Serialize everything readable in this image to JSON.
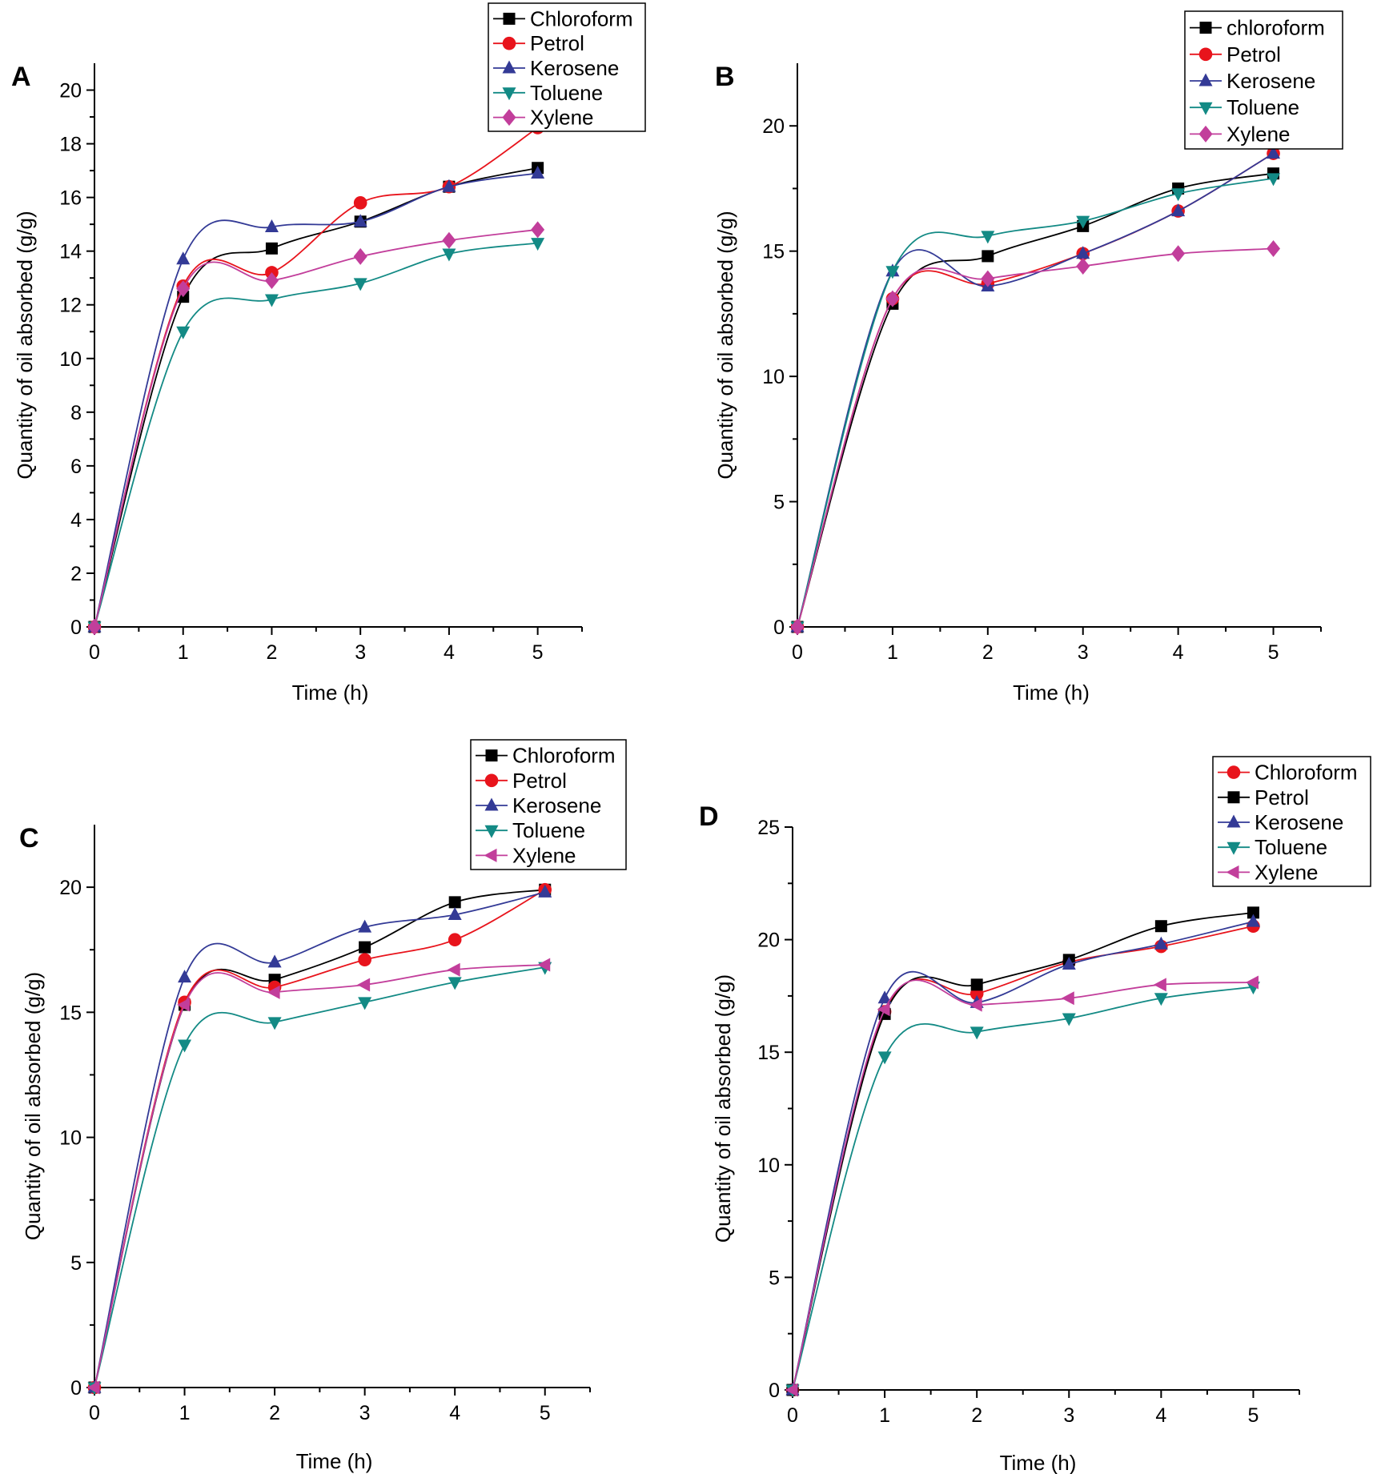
{
  "colors": {
    "black": "#000000",
    "red": "#e8141c",
    "blue": "#333a96",
    "teal": "#138a85",
    "magenta": "#c23e9b"
  },
  "chart_data": [
    {
      "panel": "A",
      "type": "line",
      "xlabel": "Time (h)",
      "ylabel": "Quantity of oil absorbed (g/g)",
      "x": [
        0,
        1,
        2,
        3,
        4,
        5
      ],
      "xlim": [
        0,
        5.5
      ],
      "ylim": [
        0,
        21
      ],
      "xticks": [
        "0",
        "1",
        "2",
        "3",
        "4",
        "5"
      ],
      "yticks": [
        "0",
        "2",
        "4",
        "6",
        "8",
        "10",
        "12",
        "14",
        "16",
        "18",
        "20"
      ],
      "ytick_values": [
        0,
        2,
        4,
        6,
        8,
        10,
        12,
        14,
        16,
        18,
        20
      ],
      "legend_position": "top-right",
      "series": [
        {
          "name": "Chloroform",
          "marker": "square",
          "color": "black",
          "values": [
            0,
            12.3,
            14.1,
            15.1,
            16.4,
            17.1
          ]
        },
        {
          "name": "Petrol",
          "marker": "circle",
          "color": "red",
          "values": [
            0,
            12.7,
            13.2,
            15.8,
            16.4,
            18.6
          ]
        },
        {
          "name": "Kerosene",
          "marker": "triangle-up",
          "color": "blue",
          "values": [
            0,
            13.7,
            14.9,
            15.1,
            16.4,
            16.9
          ]
        },
        {
          "name": "Toluene",
          "marker": "triangle-down",
          "color": "teal",
          "values": [
            0,
            11.0,
            12.2,
            12.8,
            13.9,
            14.3
          ]
        },
        {
          "name": "Xylene",
          "marker": "diamond",
          "color": "magenta",
          "values": [
            0,
            12.6,
            12.9,
            13.8,
            14.4,
            14.8
          ]
        }
      ]
    },
    {
      "panel": "B",
      "type": "line",
      "xlabel": "Time (h)",
      "ylabel": "Quantity of oil absorbed (g/g)",
      "x": [
        0,
        1,
        2,
        3,
        4,
        5
      ],
      "xlim": [
        0,
        5.5
      ],
      "ylim": [
        0,
        22.5
      ],
      "xticks": [
        "0",
        "1",
        "2",
        "3",
        "4",
        "5"
      ],
      "yticks": [
        "0",
        "5",
        "10",
        "15",
        "20"
      ],
      "ytick_values": [
        0,
        5,
        10,
        15,
        20
      ],
      "legend_position": "top-right",
      "series": [
        {
          "name": "chloroform",
          "marker": "square",
          "color": "black",
          "values": [
            0,
            12.9,
            14.8,
            16.0,
            17.5,
            18.1
          ]
        },
        {
          "name": "Petrol",
          "marker": "circle",
          "color": "red",
          "values": [
            0,
            13.1,
            13.7,
            14.9,
            16.6,
            18.9
          ]
        },
        {
          "name": "Kerosene",
          "marker": "triangle-up",
          "color": "blue",
          "values": [
            0,
            14.2,
            13.6,
            14.9,
            16.6,
            18.9
          ]
        },
        {
          "name": "Toluene",
          "marker": "triangle-down",
          "color": "teal",
          "values": [
            0,
            14.2,
            15.6,
            16.2,
            17.3,
            17.9
          ]
        },
        {
          "name": "Xylene",
          "marker": "diamond",
          "color": "magenta",
          "values": [
            0,
            13.1,
            13.9,
            14.4,
            14.9,
            15.1
          ]
        }
      ]
    },
    {
      "panel": "C",
      "type": "line",
      "xlabel": "Time (h)",
      "ylabel": "Quantity of oil absorbed  (g/g)",
      "x": [
        0,
        1,
        2,
        3,
        4,
        5
      ],
      "xlim": [
        0,
        5.5
      ],
      "ylim": [
        0,
        22.5
      ],
      "xticks": [
        "0",
        "1",
        "2",
        "3",
        "4",
        "5"
      ],
      "yticks": [
        "0",
        "5",
        "10",
        "15",
        "20"
      ],
      "ytick_values": [
        0,
        5,
        10,
        15,
        20
      ],
      "legend_position": "top-right",
      "series": [
        {
          "name": "Chloroform",
          "marker": "square",
          "color": "black",
          "values": [
            0,
            15.3,
            16.3,
            17.6,
            19.4,
            19.9
          ]
        },
        {
          "name": "Petrol",
          "marker": "circle",
          "color": "red",
          "values": [
            0,
            15.4,
            16.0,
            17.1,
            17.9,
            19.9
          ]
        },
        {
          "name": "Kerosene",
          "marker": "triangle-up",
          "color": "blue",
          "values": [
            0,
            16.4,
            17.0,
            18.4,
            18.9,
            19.8
          ]
        },
        {
          "name": "Toluene",
          "marker": "triangle-down",
          "color": "teal",
          "values": [
            0,
            13.7,
            14.6,
            15.4,
            16.2,
            16.8
          ]
        },
        {
          "name": "Xylene",
          "marker": "triangle-left",
          "color": "magenta",
          "values": [
            0,
            15.3,
            15.8,
            16.1,
            16.7,
            16.9
          ]
        }
      ]
    },
    {
      "panel": "D",
      "type": "line",
      "xlabel": "Time (h)",
      "ylabel": "Quantity of oil absorbed (g/g)",
      "x": [
        0,
        1,
        2,
        3,
        4,
        5
      ],
      "xlim": [
        0,
        5.5
      ],
      "ylim": [
        0,
        25
      ],
      "xticks": [
        "0",
        "1",
        "2",
        "3",
        "4",
        "5"
      ],
      "yticks": [
        "0",
        "5",
        "10",
        "15",
        "20",
        "25"
      ],
      "ytick_values": [
        0,
        5,
        10,
        15,
        20,
        25
      ],
      "legend_position": "top-right",
      "series": [
        {
          "name": "Chloroform",
          "marker": "circle",
          "color": "red",
          "values": [
            0,
            16.8,
            17.6,
            19.0,
            19.7,
            20.6
          ]
        },
        {
          "name": "Petrol",
          "marker": "square",
          "color": "black",
          "values": [
            0,
            16.7,
            18.0,
            19.1,
            20.6,
            21.2
          ]
        },
        {
          "name": "Kerosene",
          "marker": "triangle-up",
          "color": "blue",
          "values": [
            0,
            17.4,
            17.2,
            18.9,
            19.8,
            20.8
          ]
        },
        {
          "name": "Toluene",
          "marker": "triangle-down",
          "color": "teal",
          "values": [
            0,
            14.8,
            15.9,
            16.5,
            17.4,
            17.9
          ]
        },
        {
          "name": "Xylene",
          "marker": "triangle-left",
          "color": "magenta",
          "values": [
            0,
            16.9,
            17.1,
            17.4,
            18.0,
            18.1
          ]
        }
      ]
    }
  ]
}
